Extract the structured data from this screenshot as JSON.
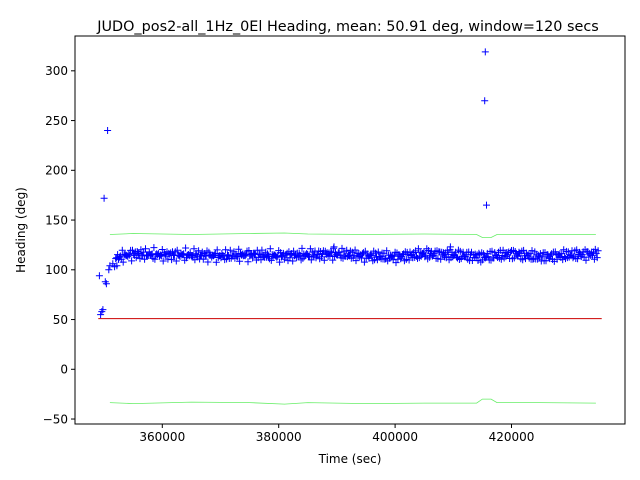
{
  "chart_data": {
    "type": "scatter",
    "title": "JUDO_pos2-all_1Hz_0El Heading, mean: 50.91 deg, window=120 secs",
    "xlabel": "Time (sec)",
    "ylabel": "Heading (deg)",
    "xlim": [
      345000,
      439500
    ],
    "ylim": [
      -55,
      335
    ],
    "xticks": [
      360000,
      380000,
      400000,
      420000
    ],
    "xtick_labels": [
      "360000",
      "380000",
      "400000",
      "420000"
    ],
    "yticks": [
      -50,
      0,
      50,
      100,
      150,
      200,
      250,
      300
    ],
    "ytick_labels": [
      "−50",
      "0",
      "50",
      "100",
      "150",
      "200",
      "250",
      "300"
    ],
    "grid": false,
    "colors": {
      "points": "#0000ff",
      "mean_line": "#cc0000",
      "bounds": "#66ee66"
    },
    "mean_line": {
      "y": 50.91,
      "x": [
        349000,
        435500
      ]
    },
    "upper_bound": {
      "x": [
        351000,
        355000,
        365000,
        375000,
        381000,
        385000,
        395000,
        405000,
        414000,
        415000,
        416500,
        417500,
        425000,
        434500
      ],
      "y": [
        135.5,
        136.5,
        135.5,
        136.5,
        137,
        136,
        135.5,
        136,
        135.5,
        132.5,
        132.5,
        135.5,
        135.5,
        135.5
      ]
    },
    "lower_bound": {
      "x": [
        351000,
        355000,
        365000,
        375000,
        381000,
        385000,
        395000,
        405000,
        414000,
        415000,
        416500,
        417500,
        425000,
        434500
      ],
      "y": [
        -33.5,
        -34.5,
        -33,
        -33.5,
        -35,
        -33.5,
        -34.5,
        -34,
        -34,
        -30,
        -30,
        -33.5,
        -33.5,
        -34
      ]
    },
    "series": [
      {
        "marker": "+",
        "trend": {
          "x": [
            352000,
            355000,
            360000,
            365000,
            370000,
            375000,
            380000,
            385000,
            390000,
            395000,
            400000,
            405000,
            410000,
            415000,
            420000,
            425000,
            430000,
            435000
          ],
          "y": [
            112,
            116,
            115,
            115,
            114,
            115,
            114,
            115,
            116,
            114,
            113,
            116,
            115,
            113,
            116,
            113,
            115,
            116
          ]
        },
        "outliers": [
          {
            "x": 349200,
            "y": 94
          },
          {
            "x": 349400,
            "y": 55
          },
          {
            "x": 349600,
            "y": 58
          },
          {
            "x": 349800,
            "y": 60
          },
          {
            "x": 350000,
            "y": 172
          },
          {
            "x": 350200,
            "y": 88
          },
          {
            "x": 350400,
            "y": 86
          },
          {
            "x": 350600,
            "y": 240
          },
          {
            "x": 350800,
            "y": 100
          },
          {
            "x": 351000,
            "y": 104
          },
          {
            "x": 351500,
            "y": 106
          },
          {
            "x": 351800,
            "y": 103
          },
          {
            "x": 352200,
            "y": 104
          },
          {
            "x": 389500,
            "y": 123
          },
          {
            "x": 409500,
            "y": 123
          },
          {
            "x": 415500,
            "y": 319
          },
          {
            "x": 415400,
            "y": 270
          },
          {
            "x": 415700,
            "y": 165
          }
        ]
      }
    ]
  }
}
